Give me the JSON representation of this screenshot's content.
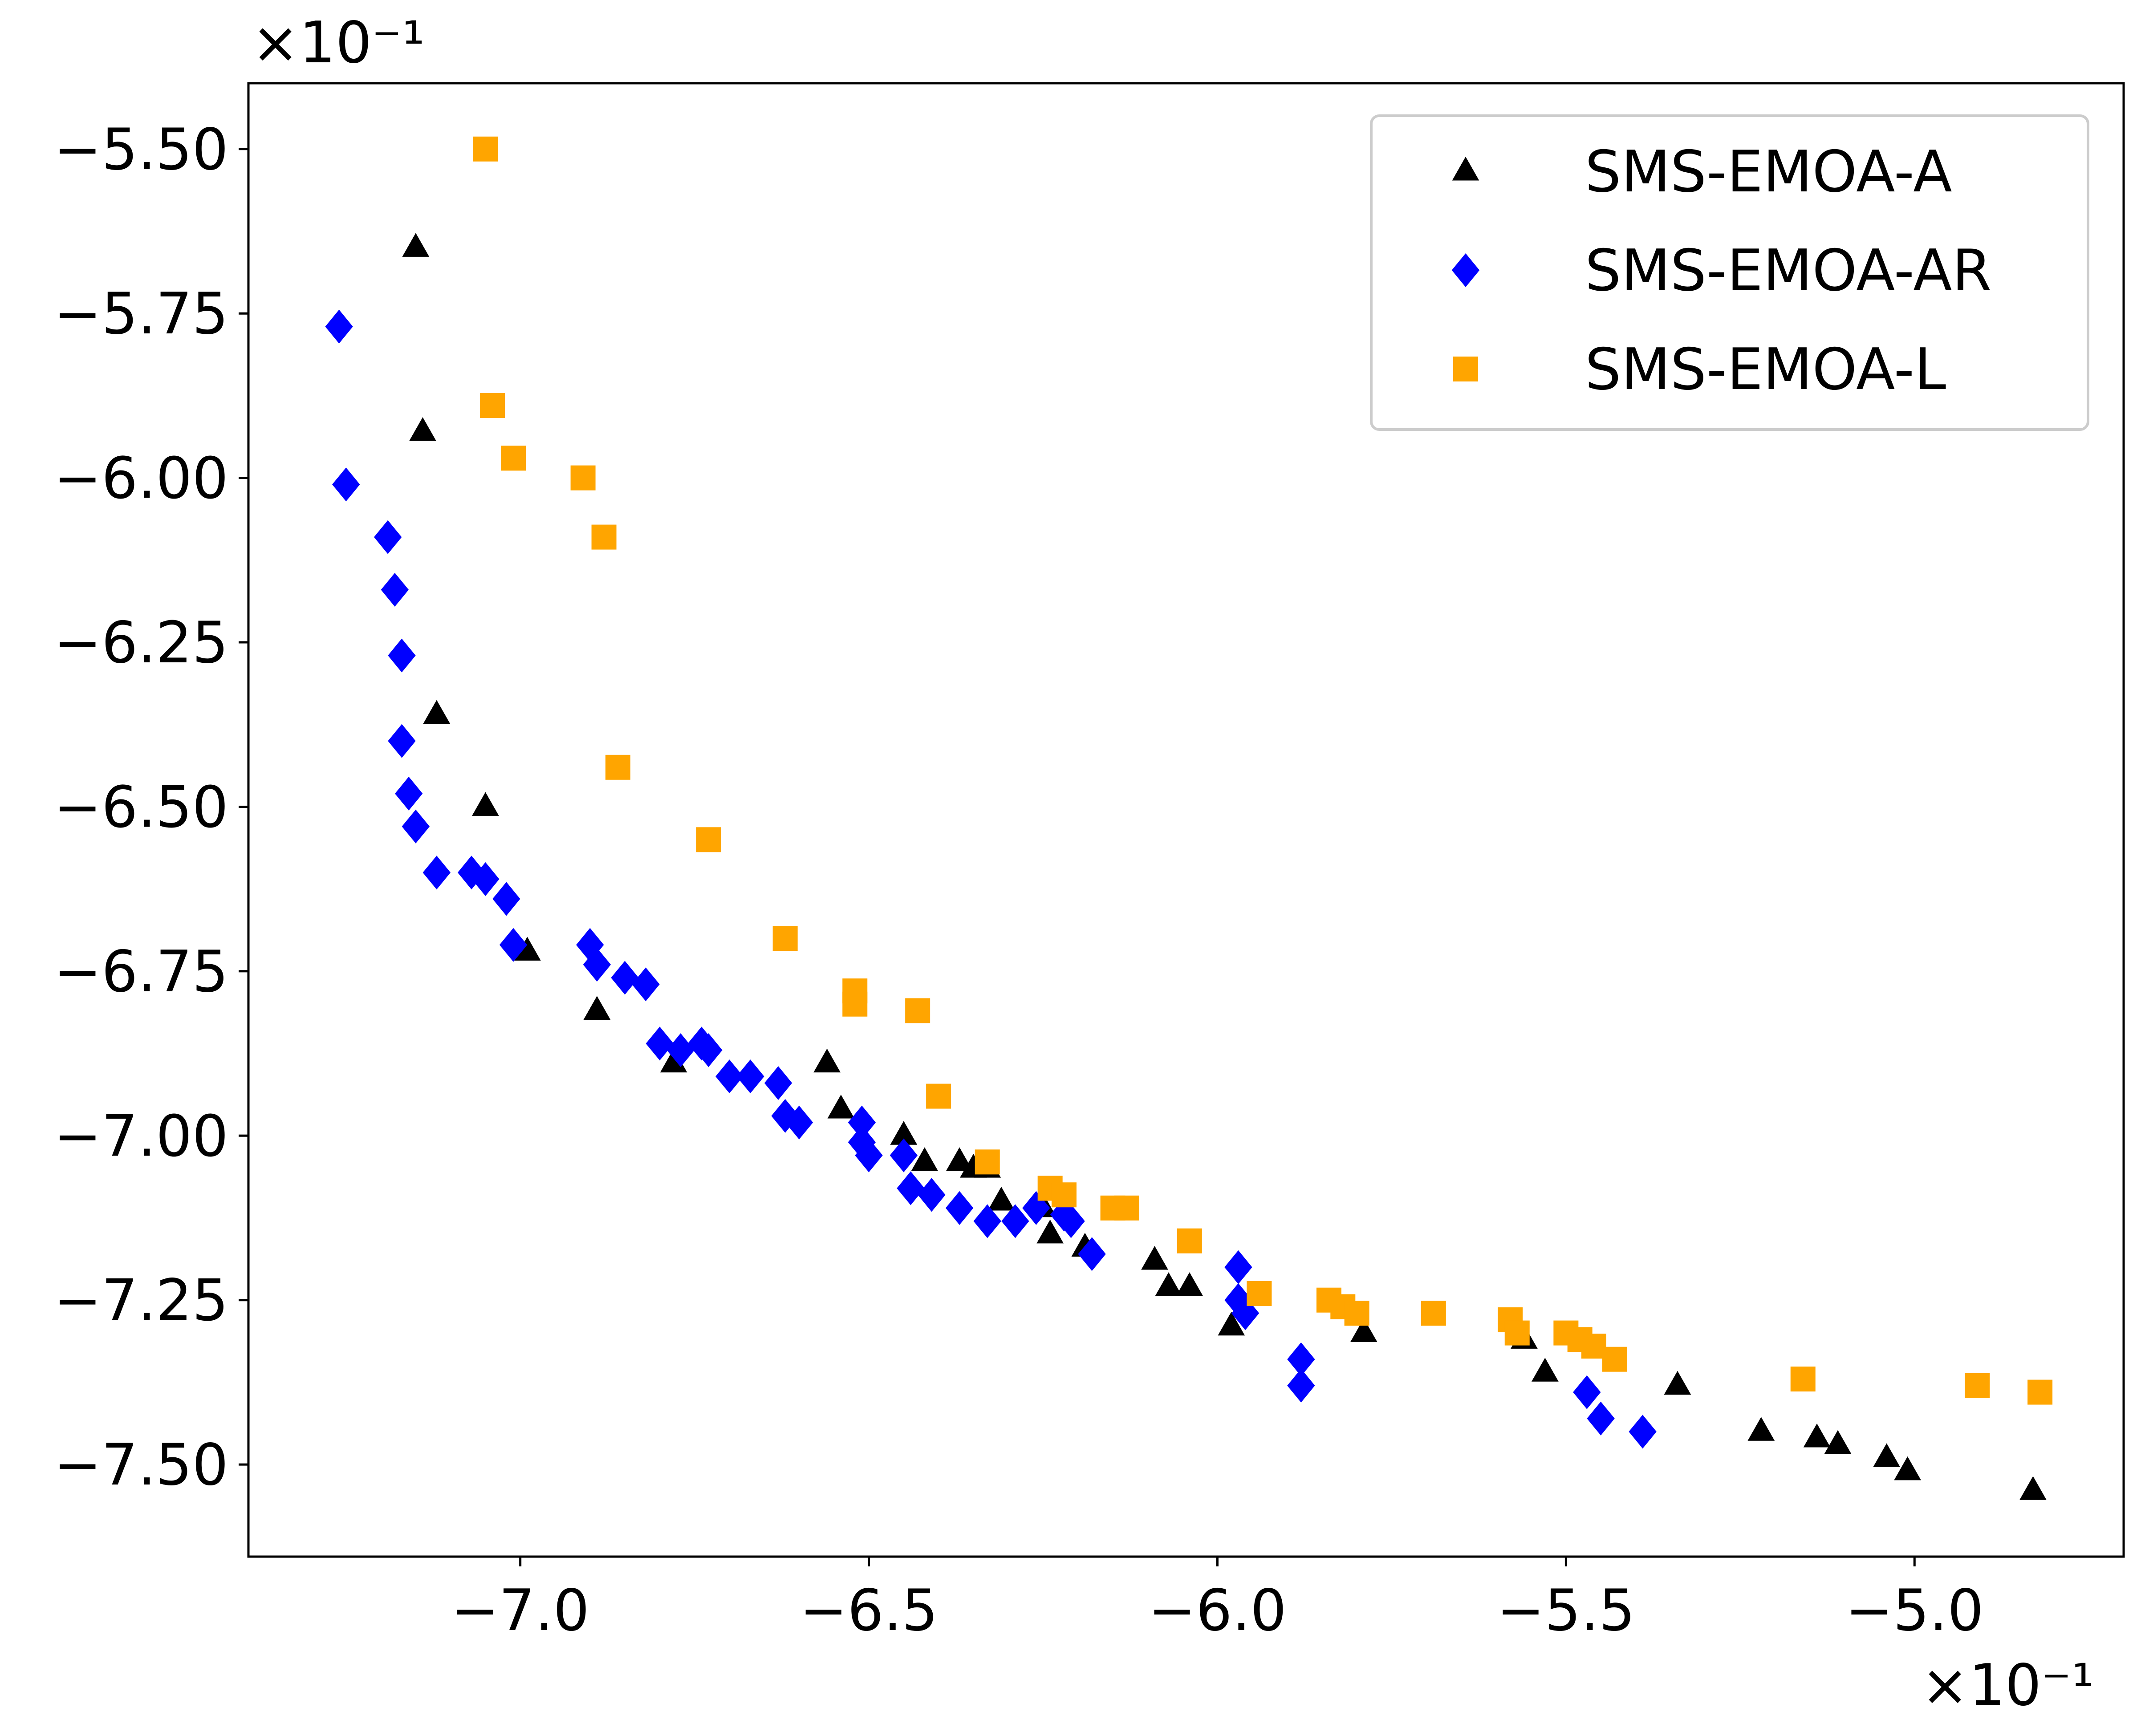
{
  "chart_data": {
    "type": "scatter",
    "title": "",
    "xlabel": "",
    "ylabel": "",
    "x_offset_label": "×10⁻¹",
    "y_offset_label": "×10⁻¹",
    "xlim": [
      -7.39,
      -4.7
    ],
    "ylim": [
      -7.64,
      -5.4
    ],
    "x_ticks": [
      -7.0,
      -6.5,
      -6.0,
      -5.5,
      -5.0
    ],
    "x_tick_labels": [
      "−7.0",
      "−6.5",
      "−6.0",
      "−5.5",
      "−5.0"
    ],
    "y_ticks": [
      -5.5,
      -5.75,
      -6.0,
      -6.25,
      -6.5,
      -6.75,
      -7.0,
      -7.25,
      -7.5
    ],
    "y_tick_labels": [
      "−5.50",
      "−5.75",
      "−6.00",
      "−6.25",
      "−6.50",
      "−6.75",
      "−7.00",
      "−7.25",
      "−7.50"
    ],
    "grid": false,
    "legend_position": "top-right",
    "series": [
      {
        "name": "SMS-EMOA-A",
        "marker": "triangle",
        "color": "#000000",
        "x": [
          -7.15,
          -7.14,
          -7.12,
          -7.05,
          -6.99,
          -6.89,
          -6.78,
          -6.56,
          -6.54,
          -6.45,
          -6.42,
          -6.37,
          -6.35,
          -6.33,
          -6.31,
          -6.25,
          -6.24,
          -6.19,
          -6.09,
          -6.07,
          -6.04,
          -5.98,
          -5.79,
          -5.56,
          -5.53,
          -5.34,
          -5.22,
          -5.14,
          -5.11,
          -5.04,
          -5.01,
          -4.83
        ],
        "y": [
          -5.65,
          -5.93,
          -6.36,
          -6.5,
          -6.72,
          -6.81,
          -6.89,
          -6.89,
          -6.96,
          -7.0,
          -7.04,
          -7.04,
          -7.05,
          -7.05,
          -7.1,
          -7.11,
          -7.15,
          -7.17,
          -7.19,
          -7.23,
          -7.23,
          -7.29,
          -7.3,
          -7.31,
          -7.36,
          -7.38,
          -7.45,
          -7.46,
          -7.47,
          -7.49,
          -7.51,
          -7.54
        ]
      },
      {
        "name": "SMS-EMOA-AR",
        "marker": "diamond",
        "color": "#0000ff",
        "x": [
          -7.26,
          -7.25,
          -7.19,
          -7.18,
          -7.17,
          -7.17,
          -7.16,
          -7.15,
          -7.12,
          -7.07,
          -7.05,
          -7.02,
          -7.01,
          -6.9,
          -6.89,
          -6.85,
          -6.82,
          -6.8,
          -6.77,
          -6.74,
          -6.73,
          -6.7,
          -6.67,
          -6.63,
          -6.62,
          -6.6,
          -6.51,
          -6.51,
          -6.5,
          -6.45,
          -6.44,
          -6.41,
          -6.37,
          -6.33,
          -6.29,
          -6.26,
          -6.22,
          -6.21,
          -6.18,
          -5.97,
          -5.97,
          -5.96,
          -5.88,
          -5.88,
          -5.47,
          -5.45,
          -5.39
        ],
        "y": [
          -5.77,
          -6.01,
          -6.09,
          -6.17,
          -6.27,
          -6.4,
          -6.48,
          -6.53,
          -6.6,
          -6.6,
          -6.61,
          -6.64,
          -6.71,
          -6.71,
          -6.74,
          -6.76,
          -6.77,
          -6.86,
          -6.87,
          -6.86,
          -6.87,
          -6.91,
          -6.91,
          -6.92,
          -6.97,
          -6.98,
          -6.98,
          -7.01,
          -7.03,
          -7.03,
          -7.08,
          -7.09,
          -7.11,
          -7.13,
          -7.13,
          -7.11,
          -7.12,
          -7.13,
          -7.18,
          -7.2,
          -7.25,
          -7.27,
          -7.34,
          -7.38,
          -7.39,
          -7.43,
          -7.45
        ]
      },
      {
        "name": "SMS-EMOA-L",
        "marker": "square",
        "color": "#ffa500",
        "x": [
          -7.05,
          -7.04,
          -7.01,
          -6.91,
          -6.88,
          -6.86,
          -6.73,
          -6.62,
          -6.52,
          -6.52,
          -6.43,
          -6.4,
          -6.33,
          -6.24,
          -6.22,
          -6.15,
          -6.13,
          -6.04,
          -5.94,
          -5.84,
          -5.82,
          -5.8,
          -5.69,
          -5.58,
          -5.57,
          -5.5,
          -5.48,
          -5.46,
          -5.43,
          -5.16,
          -4.91,
          -4.82
        ],
        "y": [
          -5.5,
          -5.89,
          -5.97,
          -6.0,
          -6.09,
          -6.44,
          -6.55,
          -6.7,
          -6.78,
          -6.8,
          -6.81,
          -6.94,
          -7.04,
          -7.08,
          -7.09,
          -7.11,
          -7.11,
          -7.16,
          -7.24,
          -7.25,
          -7.26,
          -7.27,
          -7.27,
          -7.28,
          -7.3,
          -7.3,
          -7.31,
          -7.32,
          -7.34,
          -7.37,
          -7.38,
          -7.39
        ]
      }
    ]
  }
}
